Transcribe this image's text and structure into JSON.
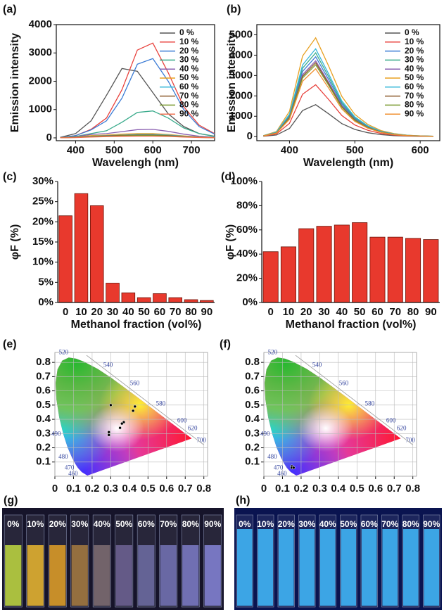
{
  "chart_data": [
    {
      "type": "line",
      "label": "(a)",
      "xlabel": "Wavelengh (nm)",
      "ylabel": "Emission intensity",
      "x": [
        360,
        400,
        440,
        480,
        520,
        560,
        600,
        640,
        680,
        720,
        760
      ],
      "xlim": [
        350,
        760
      ],
      "xticks": [
        400,
        500,
        600,
        700
      ],
      "ylim": [
        -100,
        4000
      ],
      "yticks": [
        0,
        1000,
        2000,
        3000,
        4000
      ],
      "legend": "upper right",
      "series": [
        {
          "name": "0 %",
          "color": "#555555",
          "values": [
            20,
            150,
            600,
            1500,
            2450,
            2350,
            1600,
            850,
            400,
            150,
            60
          ]
        },
        {
          "name": "10 %",
          "color": "#e8413c",
          "values": [
            10,
            80,
            300,
            700,
            1700,
            3100,
            3350,
            2300,
            1100,
            450,
            150
          ]
        },
        {
          "name": "20 %",
          "color": "#3a7bd5",
          "values": [
            10,
            80,
            280,
            600,
            1400,
            2600,
            2800,
            2000,
            1000,
            400,
            130
          ]
        },
        {
          "name": "30 %",
          "color": "#3aab8c",
          "values": [
            10,
            50,
            150,
            250,
            550,
            900,
            950,
            700,
            350,
            150,
            50
          ]
        },
        {
          "name": "40 %",
          "color": "#8a5fb0",
          "values": [
            5,
            40,
            120,
            150,
            220,
            290,
            300,
            230,
            130,
            60,
            20
          ]
        },
        {
          "name": "50 %",
          "color": "#e8a020",
          "values": [
            5,
            30,
            80,
            100,
            130,
            150,
            150,
            120,
            70,
            30,
            10
          ]
        },
        {
          "name": "60 %",
          "color": "#38b8d8",
          "values": [
            5,
            25,
            60,
            80,
            100,
            120,
            120,
            100,
            60,
            25,
            10
          ]
        },
        {
          "name": "70 %",
          "color": "#8b5a2b",
          "values": [
            5,
            20,
            50,
            70,
            90,
            100,
            100,
            80,
            50,
            20,
            8
          ]
        },
        {
          "name": "80 %",
          "color": "#7a9a30",
          "values": [
            3,
            15,
            40,
            55,
            70,
            80,
            80,
            65,
            40,
            15,
            6
          ]
        },
        {
          "name": "90 %",
          "color": "#f07050",
          "values": [
            3,
            10,
            30,
            45,
            55,
            60,
            60,
            50,
            30,
            12,
            5
          ]
        }
      ]
    },
    {
      "type": "line",
      "label": "(b)",
      "xlabel": "Wavelength (nm)",
      "ylabel": "Emission intensity",
      "x": [
        360,
        380,
        400,
        420,
        440,
        460,
        480,
        500,
        520,
        540,
        560,
        580,
        600,
        620
      ],
      "xlim": [
        350,
        630
      ],
      "xticks": [
        400,
        500,
        600
      ],
      "ylim": [
        -200,
        5500
      ],
      "yticks": [
        0,
        1000,
        2000,
        3000,
        4000,
        5000
      ],
      "legend": "upper right",
      "series": [
        {
          "name": "0 %",
          "color": "#555555",
          "values": [
            16,
            80,
            400,
            1280,
            1568,
            1120,
            640,
            352,
            192,
            96,
            48,
            24,
            13,
            6
          ]
        },
        {
          "name": "10 %",
          "color": "#e8413c",
          "values": [
            26,
            130,
            650,
            2080,
            2548,
            1820,
            1040,
            572,
            312,
            156,
            78,
            39,
            21,
            10
          ]
        },
        {
          "name": "20 %",
          "color": "#3a7bd5",
          "values": [
            40,
            200,
            1000,
            3200,
            3920,
            2800,
            1600,
            880,
            480,
            240,
            120,
            60,
            32,
            16
          ]
        },
        {
          "name": "30 %",
          "color": "#3aab8c",
          "values": [
            42,
            210,
            1050,
            3360,
            4116,
            2940,
            1680,
            924,
            504,
            252,
            126,
            63,
            34,
            17
          ]
        },
        {
          "name": "40 %",
          "color": "#8a5fb0",
          "values": [
            38,
            190,
            950,
            3040,
            3724,
            2660,
            1520,
            836,
            456,
            228,
            114,
            57,
            30,
            15
          ]
        },
        {
          "name": "50 %",
          "color": "#e8a020",
          "values": [
            50,
            248,
            1238,
            3960,
            4851,
            3465,
            1980,
            1089,
            594,
            297,
            149,
            74,
            40,
            20
          ]
        },
        {
          "name": "60 %",
          "color": "#38b8d8",
          "values": [
            44,
            220,
            1100,
            3520,
            4312,
            3080,
            1760,
            968,
            528,
            264,
            132,
            66,
            35,
            18
          ]
        },
        {
          "name": "70 %",
          "color": "#8b5a2b",
          "values": [
            37,
            185,
            925,
            2960,
            3626,
            2590,
            1480,
            814,
            444,
            222,
            111,
            56,
            30,
            15
          ]
        },
        {
          "name": "80 %",
          "color": "#7a9a30",
          "values": [
            36,
            180,
            900,
            2880,
            3528,
            2520,
            1440,
            792,
            432,
            216,
            108,
            54,
            29,
            14
          ]
        },
        {
          "name": "90 %",
          "color": "#f09030",
          "values": [
            34,
            170,
            850,
            2720,
            3332,
            2380,
            1360,
            748,
            408,
            204,
            102,
            51,
            27,
            14
          ]
        }
      ]
    },
    {
      "type": "bar",
      "label": "(c)",
      "xlabel": "Methanol fraction (vol%)",
      "ylabel": "φF (%)",
      "color": "#e8392d",
      "categories": [
        "0",
        "10",
        "20",
        "30",
        "40",
        "50",
        "60",
        "70",
        "80",
        "90"
      ],
      "values": [
        21.5,
        27,
        24,
        4.8,
        2.4,
        1.2,
        2.2,
        1.2,
        0.7,
        0.5
      ],
      "ylim": [
        0,
        30
      ],
      "yticks": [
        {
          "value": 0,
          "label": "0%"
        },
        {
          "value": 5,
          "label": "5%"
        },
        {
          "value": 10,
          "label": "10%"
        },
        {
          "value": 15,
          "label": "15%"
        },
        {
          "value": 20,
          "label": "20%"
        },
        {
          "value": 25,
          "label": "25%"
        },
        {
          "value": 30,
          "label": "30%"
        }
      ]
    },
    {
      "type": "bar",
      "label": "(d)",
      "xlabel": "Methanol fraction (vol%)",
      "ylabel": "φF (%)",
      "color": "#e8392d",
      "categories": [
        "0",
        "10",
        "20",
        "30",
        "40",
        "50",
        "60",
        "70",
        "80",
        "90"
      ],
      "values": [
        42,
        46,
        61,
        63,
        64,
        66,
        54,
        54,
        53,
        52
      ],
      "ylim": [
        0,
        100
      ],
      "yticks": [
        {
          "value": 0,
          "label": "0%"
        },
        {
          "value": 20,
          "label": "20%"
        },
        {
          "value": 40,
          "label": "40%"
        },
        {
          "value": 60,
          "label": "60%"
        },
        {
          "value": 80,
          "label": "80%"
        },
        {
          "value": 100,
          "label": "100%"
        }
      ]
    },
    {
      "type": "scatter",
      "label": "(e)",
      "xlim": [
        0,
        0.82
      ],
      "ylim": [
        0,
        0.87
      ],
      "grid": true,
      "xticks": [
        0,
        0.1,
        0.2,
        0.3,
        0.4,
        0.5,
        0.6,
        0.7,
        0.8
      ],
      "yticks": [
        0.1,
        0.2,
        0.3,
        0.4,
        0.5,
        0.6,
        0.7,
        0.8
      ],
      "annotations": [
        "520",
        "540",
        "560",
        "580",
        "600",
        "620",
        "700",
        "490",
        "480",
        "470",
        "460"
      ],
      "series": [
        {
          "color": "#000000",
          "x": [
            0.3,
            0.43,
            0.42,
            0.37,
            0.36,
            0.35,
            0.29,
            0.29
          ],
          "y": [
            0.5,
            0.49,
            0.46,
            0.38,
            0.37,
            0.34,
            0.31,
            0.29
          ]
        }
      ]
    },
    {
      "type": "scatter",
      "label": "(f)",
      "xlim": [
        0,
        0.82
      ],
      "ylim": [
        0,
        0.87
      ],
      "grid": true,
      "xticks": [
        0,
        0.1,
        0.2,
        0.3,
        0.4,
        0.5,
        0.6,
        0.7,
        0.8
      ],
      "yticks": [
        0.1,
        0.2,
        0.3,
        0.4,
        0.5,
        0.6,
        0.7,
        0.8
      ],
      "annotations": [
        "520",
        "540",
        "560",
        "580",
        "600",
        "620",
        "700",
        "490",
        "480",
        "470",
        "460"
      ],
      "series": [
        {
          "color": "#000000",
          "x": [
            0.15,
            0.15,
            0.16
          ],
          "y": [
            0.07,
            0.06,
            0.06
          ]
        }
      ]
    }
  ],
  "photos": [
    {
      "label": "(g)",
      "vials": [
        "0%",
        "10%",
        "20%",
        "30%",
        "40%",
        "50%",
        "60%",
        "70%",
        "80%",
        "90%"
      ]
    },
    {
      "label": "(h)",
      "vials": [
        "0%",
        "10%",
        "20%",
        "30%",
        "40%",
        "50%",
        "60%",
        "70%",
        "80%",
        "90%"
      ]
    }
  ]
}
